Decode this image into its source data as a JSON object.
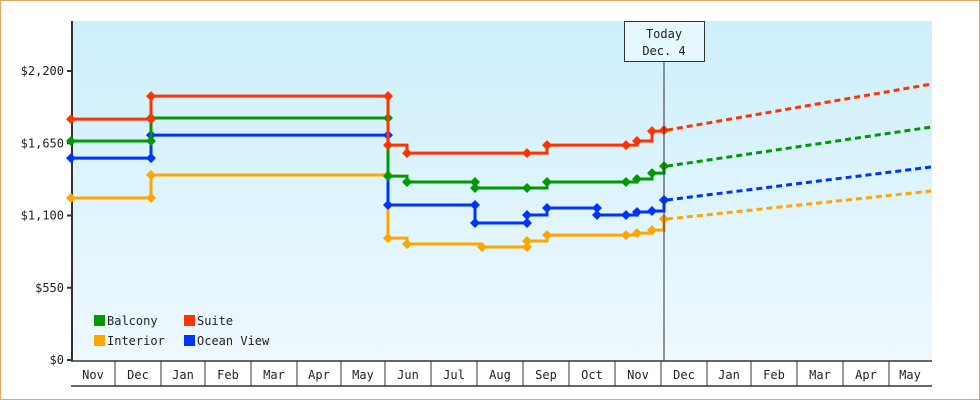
{
  "chart_data": {
    "type": "line",
    "title": "",
    "xlabel": "",
    "ylabel": "",
    "ylim": [
      0,
      2450
    ],
    "y_ticks": [
      {
        "label": "$0",
        "value": 0
      },
      {
        "label": "$550",
        "value": 550
      },
      {
        "label": "$1,100",
        "value": 1100
      },
      {
        "label": "$1,650",
        "value": 1650
      },
      {
        "label": "$2,200",
        "value": 2200
      }
    ],
    "x_categories": [
      "Nov",
      "Dec",
      "Jan",
      "Feb",
      "Mar",
      "Apr",
      "May",
      "Jun",
      "Jul",
      "Aug",
      "Sep",
      "Oct",
      "Nov",
      "Dec",
      "Jan",
      "Feb",
      "Mar",
      "Apr",
      "May"
    ],
    "grid": false,
    "legend_position": "lower-left",
    "annotation": {
      "line1": "Today",
      "line2": "Dec. 4"
    },
    "series": [
      {
        "name": "Balcony",
        "color": "#009900",
        "history": [
          {
            "date": "Nov (start)",
            "value": 1667
          },
          {
            "date": "Dec ~mid",
            "value": 1667
          },
          {
            "date": "Dec ~mid",
            "value": 1842
          },
          {
            "date": "Jun (start)",
            "value": 1842
          },
          {
            "date": "Jun (start)",
            "value": 1400
          },
          {
            "date": "Jun ~early",
            "value": 1355
          },
          {
            "date": "Aug (start)",
            "value": 1355
          },
          {
            "date": "Aug (start)",
            "value": 1309
          },
          {
            "date": "Sep (start)",
            "value": 1309
          },
          {
            "date": "Sep ~early",
            "value": 1355
          },
          {
            "date": "Nov ~late",
            "value": 1355
          },
          {
            "date": "Nov ~late",
            "value": 1378
          },
          {
            "date": "Nov ~late",
            "value": 1423
          },
          {
            "date": "Dec 4",
            "value": 1476
          }
        ],
        "forecast": [
          {
            "date": "Dec 4",
            "value": 1476
          },
          {
            "date": "May (end)",
            "value": 1773
          }
        ]
      },
      {
        "name": "Suite",
        "color": "#ff3300",
        "history": [
          {
            "date": "Nov (start)",
            "value": 1834
          },
          {
            "date": "Dec ~mid",
            "value": 1834
          },
          {
            "date": "Dec ~mid",
            "value": 2009
          },
          {
            "date": "Jun (start)",
            "value": 2009
          },
          {
            "date": "Jun (start)",
            "value": 1636
          },
          {
            "date": "Jun ~early",
            "value": 1575
          },
          {
            "date": "Sep (start)",
            "value": 1575
          },
          {
            "date": "Sep ~early",
            "value": 1636
          },
          {
            "date": "Nov ~late",
            "value": 1636
          },
          {
            "date": "Nov ~late",
            "value": 1667
          },
          {
            "date": "Nov ~late",
            "value": 1742
          },
          {
            "date": "Dec 4",
            "value": 1750
          }
        ],
        "forecast": [
          {
            "date": "Dec 4",
            "value": 1750
          },
          {
            "date": "May (end)",
            "value": 2100
          }
        ]
      },
      {
        "name": "Interior",
        "color": "#ffa500",
        "history": [
          {
            "date": "Nov (start)",
            "value": 1233
          },
          {
            "date": "Dec ~mid",
            "value": 1233
          },
          {
            "date": "Dec ~mid",
            "value": 1408
          },
          {
            "date": "Jun (start)",
            "value": 1408
          },
          {
            "date": "Jun (start)",
            "value": 928
          },
          {
            "date": "Jun ~early",
            "value": 883
          },
          {
            "date": "Aug ~early",
            "value": 860
          },
          {
            "date": "Sep (start)",
            "value": 860
          },
          {
            "date": "Sep (start)",
            "value": 906
          },
          {
            "date": "Sep ~early",
            "value": 951
          },
          {
            "date": "Nov ~late",
            "value": 951
          },
          {
            "date": "Nov ~late",
            "value": 966
          },
          {
            "date": "Nov ~late",
            "value": 989
          },
          {
            "date": "Nov ~late",
            "value": 1073
          },
          {
            "date": "Dec 4",
            "value": 1073
          }
        ],
        "forecast": [
          {
            "date": "Dec 4",
            "value": 1073
          },
          {
            "date": "May (end)",
            "value": 1286
          }
        ]
      },
      {
        "name": "Ocean View",
        "color": "#0033ff",
        "history": [
          {
            "date": "Nov (start)",
            "value": 1537
          },
          {
            "date": "Dec ~mid",
            "value": 1537
          },
          {
            "date": "Dec ~mid",
            "value": 1712
          },
          {
            "date": "Jun (start)",
            "value": 1712
          },
          {
            "date": "Jun (start)",
            "value": 1180
          },
          {
            "date": "Aug (start)",
            "value": 1180
          },
          {
            "date": "Aug (start)",
            "value": 1043
          },
          {
            "date": "Sep (start)",
            "value": 1043
          },
          {
            "date": "Sep (start)",
            "value": 1104
          },
          {
            "date": "Sep ~early",
            "value": 1157
          },
          {
            "date": "Oct ~early",
            "value": 1157
          },
          {
            "date": "Oct ~early",
            "value": 1104
          },
          {
            "date": "Nov ~late",
            "value": 1104
          },
          {
            "date": "Nov ~late",
            "value": 1127
          },
          {
            "date": "Nov ~late",
            "value": 1134
          },
          {
            "date": "Nov ~late",
            "value": 1218
          },
          {
            "date": "Dec 4",
            "value": 1218
          }
        ],
        "forecast": [
          {
            "date": "Dec 4",
            "value": 1218
          },
          {
            "date": "May (end)",
            "value": 1469
          }
        ]
      }
    ]
  },
  "legend": {
    "items": [
      {
        "label": "Balcony",
        "color": "#009900"
      },
      {
        "label": "Suite",
        "color": "#ff3300"
      },
      {
        "label": "Interior",
        "color": "#ffa500"
      },
      {
        "label": "Ocean View",
        "color": "#0033ff"
      }
    ]
  },
  "today_marker": {
    "line1": "Today",
    "line2": "Dec. 4"
  }
}
